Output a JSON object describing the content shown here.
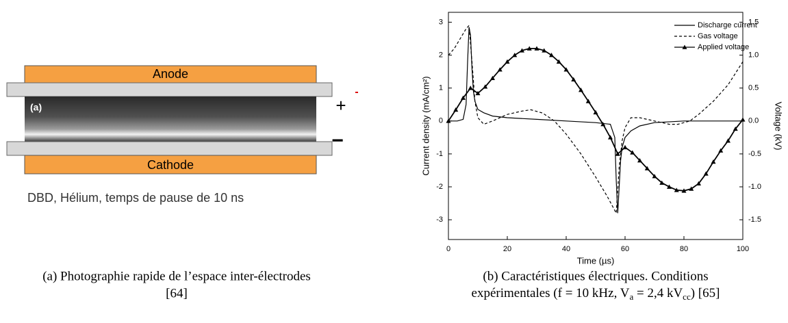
{
  "figure_a": {
    "anode": "Anode",
    "cathode": "Cathode",
    "photo_label": "(a)",
    "plus": "+",
    "minus": "−",
    "description": "DBD, Hélium, temps de pause de 10 ns",
    "caption": [
      "(a) Photographie rapide de l’espace inter-électrodes",
      "[64]"
    ]
  },
  "chart_data": {
    "type": "line",
    "xlabel": "Time (µs)",
    "ylabel": "Current density (mA/cm²)",
    "y2label": "Voltage (kV)",
    "xlim": [
      0,
      100
    ],
    "xticks": [
      0,
      20,
      40,
      60,
      80,
      100
    ],
    "ylim": [
      -3.6,
      3.3
    ],
    "yticks": [
      3,
      2,
      1,
      0,
      -1,
      -2,
      -3
    ],
    "y2lim": [
      -1.8,
      1.65
    ],
    "y2ticks": [
      1.5,
      {
        "value": 1,
        "label": "1.0"
      },
      0.5,
      {
        "value": 0,
        "label": "0.0"
      },
      -0.5,
      {
        "value": -1,
        "label": "-1.0"
      },
      -1.5
    ],
    "legend": "upper right",
    "series": [
      {
        "name": "Discharge current",
        "color": "#000",
        "style": "solid",
        "axis": "y",
        "x": [
          0,
          3,
          5,
          6,
          6.5,
          7,
          7.5,
          8,
          8.5,
          9,
          10,
          12,
          15,
          20,
          30,
          40,
          50,
          55,
          56.5,
          57,
          57.5,
          58,
          58.5,
          59,
          60,
          62,
          65,
          70,
          80,
          90,
          100
        ],
        "values": [
          0,
          0,
          0.05,
          0.5,
          1.8,
          2.85,
          2.6,
          1.6,
          0.9,
          0.6,
          0.35,
          0.25,
          0.15,
          0.1,
          0.05,
          0,
          -0.05,
          -0.1,
          -0.5,
          -1.8,
          -2.8,
          -2,
          -1.2,
          -0.8,
          -0.5,
          -0.3,
          -0.15,
          -0.05,
          0,
          0,
          0
        ]
      },
      {
        "name": "Gas voltage",
        "color": "#000",
        "style": "dashed",
        "axis": "y2",
        "x": [
          0,
          2,
          4,
          6,
          7,
          8,
          9,
          10,
          12,
          15,
          20,
          25,
          28,
          32,
          36,
          40,
          45,
          50,
          54,
          57,
          58,
          59,
          60,
          62,
          65,
          70,
          75,
          78,
          82,
          85,
          90,
          95,
          100
        ],
        "values": [
          1.0,
          1.1,
          1.25,
          1.4,
          1.45,
          0.9,
          0.3,
          0.05,
          -0.05,
          0,
          0.1,
          0.15,
          0.17,
          0.12,
          0,
          -0.2,
          -0.5,
          -0.85,
          -1.15,
          -1.4,
          -0.7,
          -0.3,
          -0.1,
          0.05,
          0.05,
          0,
          -0.05,
          -0.05,
          0,
          0.1,
          0.3,
          0.55,
          0.9
        ]
      },
      {
        "name": "Applied voltage",
        "color": "#000",
        "style": "solid",
        "marker": "triangle",
        "axis": "y2",
        "x": [
          0,
          2.5,
          5,
          7.5,
          10,
          12.5,
          15,
          17.5,
          20,
          22.5,
          25,
          27.5,
          30,
          32.5,
          35,
          37.5,
          40,
          42.5,
          45,
          47.5,
          50,
          52.5,
          55,
          57.5,
          60,
          62.5,
          65,
          67.5,
          70,
          72.5,
          75,
          77.5,
          80,
          82.5,
          85,
          87.5,
          90,
          92.5,
          95,
          97.5,
          100
        ],
        "values": [
          0,
          0.17,
          0.35,
          0.5,
          0.42,
          0.52,
          0.65,
          0.78,
          0.9,
          1.0,
          1.07,
          1.1,
          1.1,
          1.07,
          1.0,
          0.9,
          0.78,
          0.63,
          0.47,
          0.3,
          0.13,
          -0.05,
          -0.25,
          -0.5,
          -0.4,
          -0.48,
          -0.6,
          -0.72,
          -0.84,
          -0.94,
          -1.0,
          -1.05,
          -1.06,
          -1.03,
          -0.95,
          -0.8,
          -0.62,
          -0.45,
          -0.3,
          -0.12,
          0.02
        ]
      }
    ]
  },
  "caption_b": {
    "line1": "(b) Caractéristiques électriques. Conditions",
    "line2": [
      "expérimentales (f = 10 kHz, V",
      "a",
      " = 2,4 kV",
      "cc",
      ") [65]"
    ]
  }
}
